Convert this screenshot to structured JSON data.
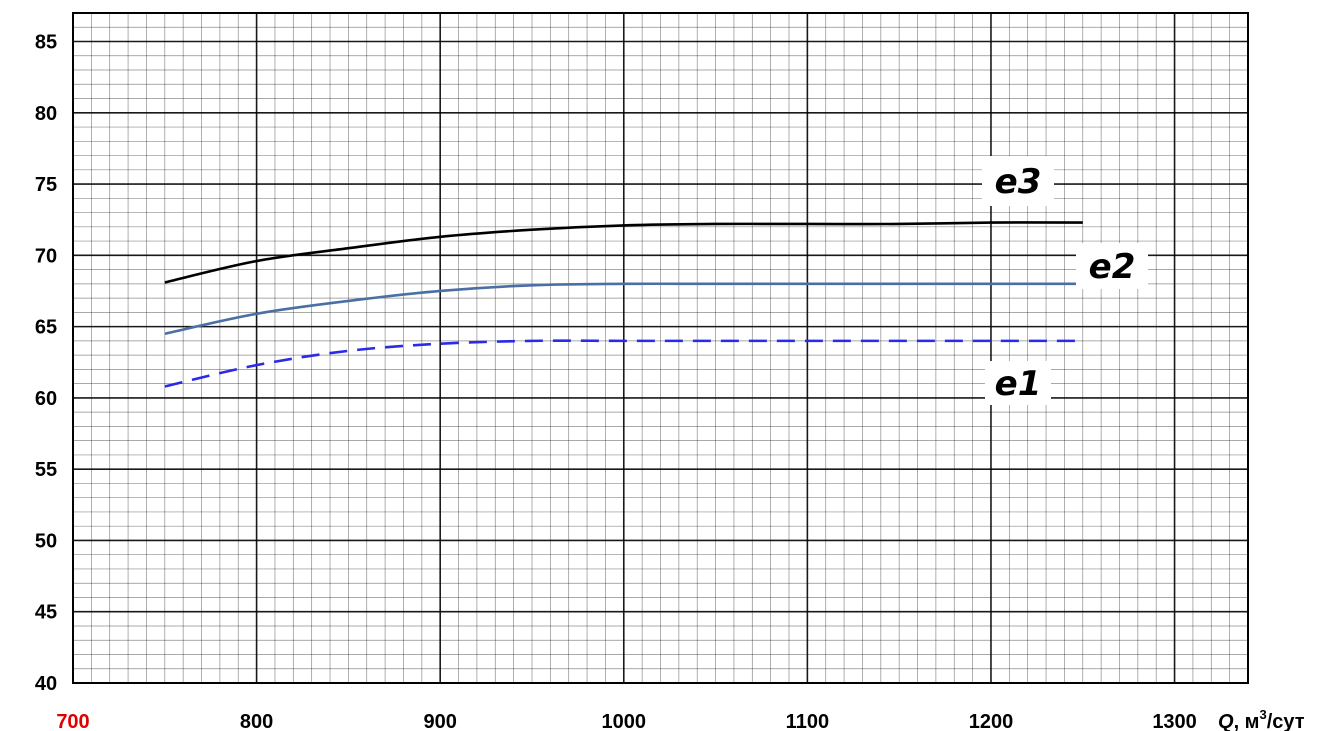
{
  "chart_data": {
    "type": "line",
    "xlabel": {
      "symbol": "Q",
      "unit": ", м",
      "sup": "3",
      "tail": "/сут"
    },
    "ylabel": "",
    "xlim": [
      700,
      1340
    ],
    "ylim": [
      40,
      87
    ],
    "xticks": [
      "700",
      "800",
      "900",
      "1000",
      "1100",
      "1200",
      "1300"
    ],
    "yticks": [
      "40",
      "45",
      "50",
      "55",
      "60",
      "65",
      "70",
      "75",
      "80",
      "85"
    ],
    "x_origin_tick_color": "#e00000",
    "grid": {
      "major_x": 100,
      "minor_x": 10,
      "major_y": 5,
      "minor_y": 1
    },
    "series": [
      {
        "name": "e3",
        "color": "#000000",
        "dash": "solid",
        "x": [
          750,
          800,
          850,
          900,
          950,
          1000,
          1050,
          1100,
          1150,
          1200,
          1250
        ],
        "y": [
          68.1,
          69.6,
          70.5,
          71.3,
          71.8,
          72.1,
          72.2,
          72.2,
          72.2,
          72.3,
          72.3
        ]
      },
      {
        "name": "e2",
        "color": "#4a6fa5",
        "dash": "solid",
        "x": [
          750,
          800,
          850,
          900,
          950,
          1000,
          1050,
          1100,
          1150,
          1200,
          1250
        ],
        "y": [
          64.5,
          65.9,
          66.8,
          67.5,
          67.9,
          68.0,
          68.0,
          68.0,
          68.0,
          68.0,
          68.0
        ]
      },
      {
        "name": "e1",
        "color": "#2a2ae8",
        "dash": "dashed",
        "x": [
          750,
          800,
          850,
          900,
          950,
          1000,
          1050,
          1100,
          1150,
          1200,
          1250
        ],
        "y": [
          60.8,
          62.3,
          63.3,
          63.8,
          64.0,
          64.0,
          64.0,
          64.0,
          64.0,
          64.0,
          64.0
        ]
      }
    ],
    "series_labels": [
      "e3",
      "e2",
      "e1"
    ]
  }
}
